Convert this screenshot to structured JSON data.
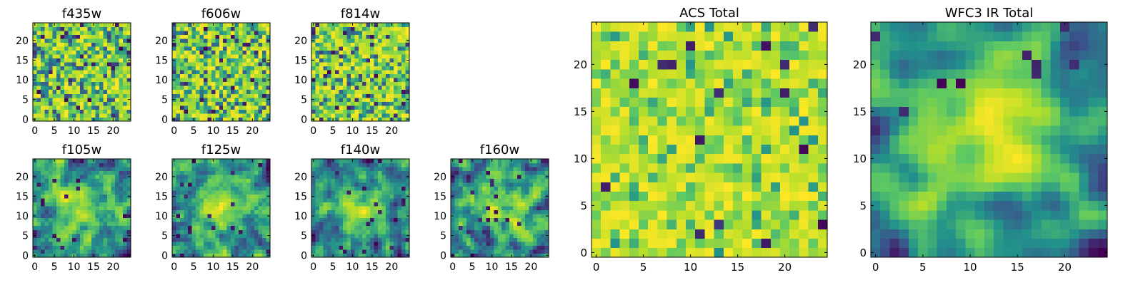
{
  "figure": {
    "colormap": "viridis",
    "colormap_stops": [
      "#440154",
      "#3b528b",
      "#21918c",
      "#5ec962",
      "#b5de2b",
      "#fde725"
    ]
  },
  "chart_data": [
    {
      "id": "f435w",
      "type": "heatmap",
      "title": "f435w",
      "grid": [
        25,
        25
      ],
      "xlim": [
        -0.5,
        24.5
      ],
      "ylim": [
        -0.5,
        24.5
      ],
      "xticks": [
        0,
        5,
        10,
        15,
        20
      ],
      "yticks": [
        0,
        5,
        10,
        15,
        20
      ],
      "pattern": "noise",
      "seed": 11
    },
    {
      "id": "f606w",
      "type": "heatmap",
      "title": "f606w",
      "grid": [
        25,
        25
      ],
      "xlim": [
        -0.5,
        24.5
      ],
      "ylim": [
        -0.5,
        24.5
      ],
      "xticks": [
        0,
        5,
        10,
        15,
        20
      ],
      "yticks": [
        0,
        5,
        10,
        15,
        20
      ],
      "pattern": "noise",
      "seed": 23
    },
    {
      "id": "f814w",
      "type": "heatmap",
      "title": "f814w",
      "grid": [
        25,
        25
      ],
      "xlim": [
        -0.5,
        24.5
      ],
      "ylim": [
        -0.5,
        24.5
      ],
      "xticks": [
        0,
        5,
        10,
        15,
        20
      ],
      "yticks": [
        0,
        5,
        10,
        15,
        20
      ],
      "pattern": "noise",
      "seed": 37
    },
    {
      "id": "f105w",
      "type": "heatmap",
      "title": "f105w",
      "grid": [
        25,
        25
      ],
      "xlim": [
        -0.5,
        24.5
      ],
      "ylim": [
        -0.5,
        24.5
      ],
      "xticks": [
        0,
        5,
        10,
        15,
        20
      ],
      "yticks": [
        0,
        5,
        10,
        15,
        20
      ],
      "pattern": "source",
      "seed": 41
    },
    {
      "id": "f125w",
      "type": "heatmap",
      "title": "f125w",
      "grid": [
        25,
        25
      ],
      "xlim": [
        -0.5,
        24.5
      ],
      "ylim": [
        -0.5,
        24.5
      ],
      "xticks": [
        0,
        5,
        10,
        15,
        20
      ],
      "yticks": [
        0,
        5,
        10,
        15,
        20
      ],
      "pattern": "source",
      "seed": 53
    },
    {
      "id": "f140w",
      "type": "heatmap",
      "title": "f140w",
      "grid": [
        25,
        25
      ],
      "xlim": [
        -0.5,
        24.5
      ],
      "ylim": [
        -0.5,
        24.5
      ],
      "xticks": [
        0,
        5,
        10,
        15,
        20
      ],
      "yticks": [
        0,
        5,
        10,
        15,
        20
      ],
      "pattern": "source",
      "seed": 67
    },
    {
      "id": "f160w",
      "type": "heatmap",
      "title": "f160w",
      "grid": [
        25,
        25
      ],
      "xlim": [
        -0.5,
        24.5
      ],
      "ylim": [
        -0.5,
        24.5
      ],
      "xticks": [
        0,
        5,
        10,
        15,
        20
      ],
      "yticks": [
        0,
        5,
        10,
        15,
        20
      ],
      "pattern": "source",
      "seed": 79
    },
    {
      "id": "acs_total",
      "type": "heatmap",
      "title": "ACS Total",
      "grid": [
        25,
        25
      ],
      "xlim": [
        -0.5,
        24.5
      ],
      "ylim": [
        -0.5,
        24.5
      ],
      "xticks": [
        0,
        5,
        10,
        15,
        20
      ],
      "yticks": [
        0,
        5,
        10,
        15,
        20
      ],
      "pattern": "noise_bright",
      "seed": 97
    },
    {
      "id": "wfc3_ir_total",
      "type": "heatmap",
      "title": "WFC3 IR Total",
      "grid": [
        25,
        25
      ],
      "xlim": [
        -0.5,
        24.5
      ],
      "ylim": [
        -0.5,
        24.5
      ],
      "xticks": [
        0,
        5,
        10,
        15,
        20
      ],
      "yticks": [
        0,
        5,
        10,
        15,
        20
      ],
      "pattern": "source_smooth",
      "seed": 131
    }
  ]
}
